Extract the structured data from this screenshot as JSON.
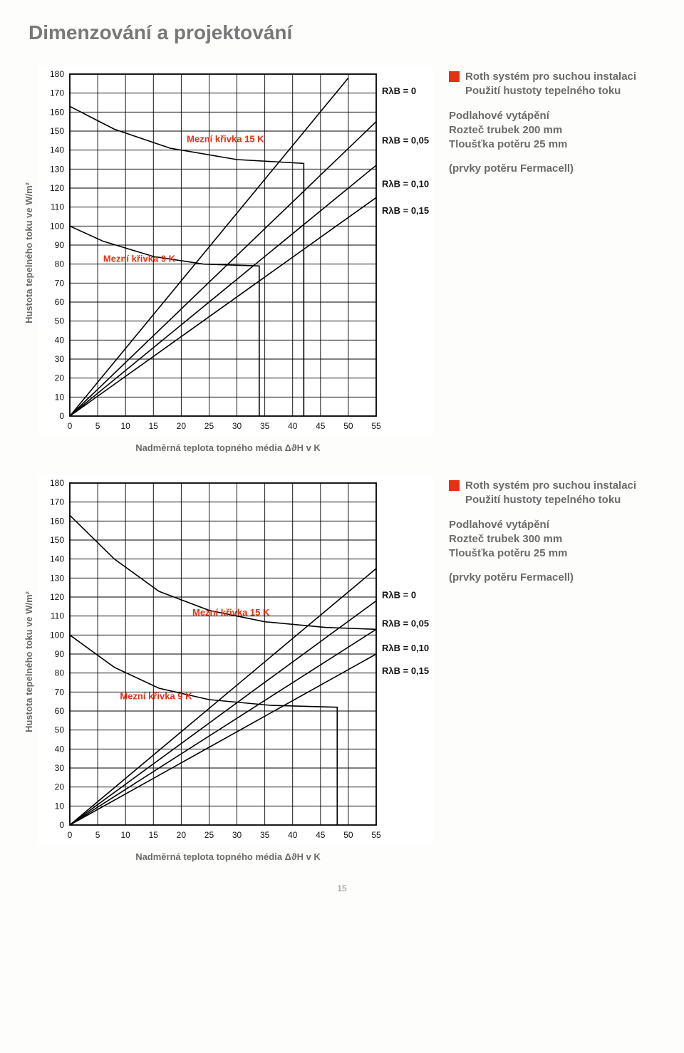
{
  "page": {
    "title": "Dimenzování a projektování",
    "page_number": "15"
  },
  "charts": [
    {
      "id": "chart-200mm",
      "y_axis_label": "Hustota tepelného toku ve W/m²",
      "x_axis_label": "Nadměrná teplota topného média ΔϑH v K",
      "xlim": [
        0,
        55
      ],
      "ylim": [
        0,
        180
      ],
      "x_ticks": [
        0,
        5,
        10,
        15,
        20,
        25,
        30,
        35,
        40,
        45,
        50,
        55
      ],
      "y_ticks": [
        0,
        10,
        20,
        30,
        40,
        50,
        60,
        70,
        80,
        90,
        100,
        110,
        120,
        130,
        140,
        150,
        160,
        170,
        180
      ],
      "grid_color": "#000000",
      "background_color": "#ffffff",
      "line_color": "#000000",
      "line_width": 1.6,
      "curves": [
        {
          "name": "RλB=0",
          "label": "RλB = 0",
          "x1": 0,
          "y1": 0,
          "x2": 50,
          "y2": 178,
          "label_y": 171
        },
        {
          "name": "RλB=0.05",
          "label": "RλB = 0,05",
          "x1": 0,
          "y1": 0,
          "x2": 55,
          "y2": 155,
          "label_y": 145
        },
        {
          "name": "RλB=0.10",
          "label": "RλB = 0,10",
          "x1": 0,
          "y1": 0,
          "x2": 55,
          "y2": 132,
          "label_y": 122
        },
        {
          "name": "RλB=0.15",
          "label": "RλB = 0,15",
          "x1": 0,
          "y1": 0,
          "x2": 55,
          "y2": 115,
          "label_y": 108
        }
      ],
      "limit_curves": [
        {
          "name": "9K",
          "label": "Mezní křivka 9 K",
          "label_x": 6,
          "label_y": 79,
          "points": [
            [
              0,
              100
            ],
            [
              6,
              92
            ],
            [
              15,
              84
            ],
            [
              24,
              80
            ],
            [
              34,
              79
            ],
            [
              34,
              0
            ]
          ],
          "label_fontsize": 13
        },
        {
          "name": "15K",
          "label": "Mezní křivka 15 K",
          "label_x": 21,
          "label_y": 142,
          "points": [
            [
              0,
              163
            ],
            [
              8,
              151
            ],
            [
              18,
              141
            ],
            [
              30,
              135
            ],
            [
              42,
              133
            ],
            [
              42,
              0
            ]
          ],
          "label_fontsize": 13
        }
      ],
      "side": {
        "heading": "Roth systém pro suchou instalaci",
        "sub": "Použití hustoty tepelného toku",
        "lines": [
          "Podlahové vytápění",
          "Rozteč trubek 200 mm",
          "Tloušťka potěru 25 mm"
        ],
        "note": "(prvky potěru Fermacell)",
        "bullet_color": "#e53012"
      }
    },
    {
      "id": "chart-300mm",
      "y_axis_label": "Hustota tepelného toku ve W/m²",
      "x_axis_label": "Nadměrná teplota topného média ΔϑH v K",
      "xlim": [
        0,
        55
      ],
      "ylim": [
        0,
        180
      ],
      "x_ticks": [
        0,
        5,
        10,
        15,
        20,
        25,
        30,
        35,
        40,
        45,
        50,
        55
      ],
      "y_ticks": [
        0,
        10,
        20,
        30,
        40,
        50,
        60,
        70,
        80,
        90,
        100,
        110,
        120,
        130,
        140,
        150,
        160,
        170,
        180
      ],
      "grid_color": "#000000",
      "background_color": "#ffffff",
      "line_color": "#000000",
      "line_width": 1.6,
      "curves": [
        {
          "name": "RλB=0",
          "label": "RλB = 0",
          "x1": 0,
          "y1": 0,
          "x2": 55,
          "y2": 135,
          "label_y": 121
        },
        {
          "name": "RλB=0.05",
          "label": "RλB = 0,05",
          "x1": 0,
          "y1": 0,
          "x2": 55,
          "y2": 118,
          "label_y": 106
        },
        {
          "name": "RλB=0.10",
          "label": "RλB = 0,10",
          "x1": 0,
          "y1": 0,
          "x2": 55,
          "y2": 103,
          "label_y": 93
        },
        {
          "name": "RλB=0.15",
          "label": "RλB = 0,15",
          "x1": 0,
          "y1": 0,
          "x2": 55,
          "y2": 90,
          "label_y": 81
        }
      ],
      "limit_curves": [
        {
          "name": "9K",
          "label": "Mezní křivka 9 K",
          "label_x": 9,
          "label_y": 64,
          "points": [
            [
              0,
              100
            ],
            [
              8,
              83
            ],
            [
              16,
              72
            ],
            [
              25,
              66
            ],
            [
              36,
              63
            ],
            [
              48,
              62
            ],
            [
              48,
              0
            ]
          ],
          "label_fontsize": 13
        },
        {
          "name": "15K",
          "label": "Mezní křivka 15 K",
          "label_x": 22,
          "label_y": 108,
          "points": [
            [
              0,
              163
            ],
            [
              8,
              140
            ],
            [
              16,
              123
            ],
            [
              25,
              113
            ],
            [
              35,
              107
            ],
            [
              46,
              104
            ],
            [
              55,
              103
            ]
          ],
          "label_fontsize": 13
        }
      ],
      "side": {
        "heading": "Roth systém pro suchou instalaci",
        "sub": "Použití hustoty tepelného toku",
        "lines": [
          "Podlahové vytápění",
          "Rozteč trubek 300 mm",
          "Tloušťka potěru 25 mm"
        ],
        "note": "(prvky potěru Fermacell)",
        "bullet_color": "#e53012"
      }
    }
  ]
}
